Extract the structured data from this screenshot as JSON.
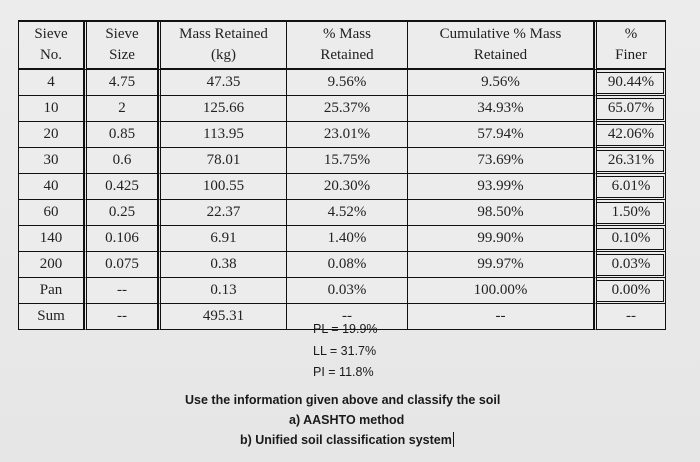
{
  "table": {
    "headers": [
      [
        "Sieve",
        "No."
      ],
      [
        "Sieve",
        "Size"
      ],
      [
        "Mass Retained",
        "(kg)"
      ],
      [
        "% Mass",
        "Retained"
      ],
      [
        "Cumulative % Mass",
        "Retained"
      ],
      [
        "%",
        "Finer"
      ]
    ],
    "rows": [
      [
        "4",
        "4.75",
        "47.35",
        "9.56%",
        "9.56%",
        "90.44%"
      ],
      [
        "10",
        "2",
        "125.66",
        "25.37%",
        "34.93%",
        "65.07%"
      ],
      [
        "20",
        "0.85",
        "113.95",
        "23.01%",
        "57.94%",
        "42.06%"
      ],
      [
        "30",
        "0.6",
        "78.01",
        "15.75%",
        "73.69%",
        "26.31%"
      ],
      [
        "40",
        "0.425",
        "100.55",
        "20.30%",
        "93.99%",
        "6.01%"
      ],
      [
        "60",
        "0.25",
        "22.37",
        "4.52%",
        "98.50%",
        "1.50%"
      ],
      [
        "140",
        "0.106",
        "6.91",
        "1.40%",
        "99.90%",
        "0.10%"
      ],
      [
        "200",
        "0.075",
        "0.38",
        "0.08%",
        "99.97%",
        "0.03%"
      ],
      [
        "Pan",
        "--",
        "0.13",
        "0.03%",
        "100.00%",
        "0.00%"
      ],
      [
        "Sum",
        "--",
        "495.31",
        "--",
        "--",
        "--"
      ]
    ]
  },
  "limits": {
    "pl": "PL = 19.9%",
    "ll": "LL = 31.7%",
    "pi": "PI = 11.8%"
  },
  "question": {
    "prompt": "Use the information given above and classify the soil",
    "a": "a) AASHTO method",
    "b": "b) Unified soil classification system"
  }
}
